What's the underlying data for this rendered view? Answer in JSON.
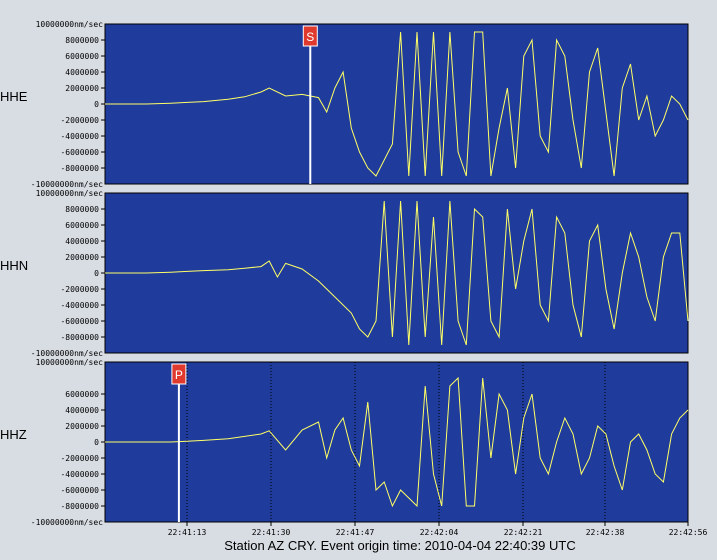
{
  "caption": "Station AZ CRY.  Event origin time: 2010-04-04 22:40:39 UTC",
  "colors": {
    "background": "#d8dde3",
    "plot_bg": "#1f3b9c",
    "trace": "#ffff66",
    "marker": "#e03a2e",
    "marker_line": "#ffffff"
  },
  "chart_data": [
    {
      "type": "line",
      "channel": "HHE",
      "ylim": [
        -10000000,
        10000000
      ],
      "y_ticks": [
        8000000,
        6000000,
        4000000,
        2000000,
        0,
        -2000000,
        -4000000,
        -6000000,
        -8000000
      ],
      "y_top_label": "10000000nm/sec",
      "y_bottom_label": "-10000000nm/sec",
      "phase_marker": {
        "label": "S",
        "x": 25
      },
      "x_ticks": [],
      "waveform": [
        [
          0,
          0
        ],
        [
          5,
          0
        ],
        [
          8,
          100000
        ],
        [
          10,
          200000
        ],
        [
          12,
          300000
        ],
        [
          15,
          600000
        ],
        [
          17,
          900000
        ],
        [
          19,
          1500000
        ],
        [
          20,
          2000000
        ],
        [
          22,
          1000000
        ],
        [
          24,
          1200000
        ],
        [
          26,
          800000
        ],
        [
          27,
          -1000000
        ],
        [
          28,
          2000000
        ],
        [
          29,
          4000000
        ],
        [
          30,
          -3000000
        ],
        [
          31,
          -6000000
        ],
        [
          32,
          -8000000
        ],
        [
          33,
          -9000000
        ],
        [
          34,
          -7000000
        ],
        [
          35,
          -5000000
        ],
        [
          36,
          9000000
        ],
        [
          37,
          -9000000
        ],
        [
          38,
          9000000
        ],
        [
          39,
          -9000000
        ],
        [
          40,
          9000000
        ],
        [
          41,
          -9000000
        ],
        [
          42,
          9000000
        ],
        [
          43,
          -6000000
        ],
        [
          44,
          -9000000
        ],
        [
          45,
          9000000
        ],
        [
          46,
          9000000
        ],
        [
          47,
          -9000000
        ],
        [
          48,
          -3000000
        ],
        [
          49,
          2000000
        ],
        [
          50,
          -8000000
        ],
        [
          51,
          6000000
        ],
        [
          52,
          8000000
        ],
        [
          53,
          -4000000
        ],
        [
          54,
          -6000000
        ],
        [
          55,
          8000000
        ],
        [
          56,
          6000000
        ],
        [
          57,
          -2000000
        ],
        [
          58,
          -8000000
        ],
        [
          59,
          4000000
        ],
        [
          60,
          7000000
        ],
        [
          61,
          -1000000
        ],
        [
          62,
          -9000000
        ],
        [
          63,
          2000000
        ],
        [
          64,
          5000000
        ],
        [
          65,
          -2000000
        ],
        [
          66,
          1000000
        ],
        [
          67,
          -4000000
        ],
        [
          68,
          -2000000
        ],
        [
          69,
          1000000
        ],
        [
          70,
          0
        ],
        [
          71,
          -2000000
        ]
      ]
    },
    {
      "type": "line",
      "channel": "HHN",
      "ylim": [
        -10000000,
        10000000
      ],
      "y_ticks": [
        8000000,
        6000000,
        4000000,
        2000000,
        0,
        -2000000,
        -4000000,
        -6000000,
        -8000000
      ],
      "y_top_label": "10000000nm/sec",
      "y_bottom_label": "-10000000nm/sec",
      "x_ticks": [],
      "waveform": [
        [
          0,
          0
        ],
        [
          5,
          0
        ],
        [
          8,
          100000
        ],
        [
          10,
          200000
        ],
        [
          12,
          300000
        ],
        [
          15,
          400000
        ],
        [
          17,
          600000
        ],
        [
          19,
          800000
        ],
        [
          20,
          1500000
        ],
        [
          21,
          -500000
        ],
        [
          22,
          1200000
        ],
        [
          24,
          500000
        ],
        [
          26,
          -1000000
        ],
        [
          27,
          -2000000
        ],
        [
          28,
          -3000000
        ],
        [
          30,
          -5000000
        ],
        [
          31,
          -7000000
        ],
        [
          32,
          -8000000
        ],
        [
          33,
          -6000000
        ],
        [
          34,
          9000000
        ],
        [
          35,
          -8000000
        ],
        [
          36,
          9000000
        ],
        [
          37,
          -9000000
        ],
        [
          38,
          9000000
        ],
        [
          39,
          -8000000
        ],
        [
          40,
          7000000
        ],
        [
          41,
          -9000000
        ],
        [
          42,
          9000000
        ],
        [
          43,
          -6000000
        ],
        [
          44,
          -9000000
        ],
        [
          45,
          8000000
        ],
        [
          46,
          7000000
        ],
        [
          47,
          -6000000
        ],
        [
          48,
          -8000000
        ],
        [
          49,
          8000000
        ],
        [
          50,
          -2000000
        ],
        [
          51,
          4000000
        ],
        [
          52,
          8000000
        ],
        [
          53,
          -4000000
        ],
        [
          54,
          -6000000
        ],
        [
          55,
          7000000
        ],
        [
          56,
          5000000
        ],
        [
          57,
          -4000000
        ],
        [
          58,
          -8000000
        ],
        [
          59,
          4000000
        ],
        [
          60,
          6000000
        ],
        [
          61,
          -2000000
        ],
        [
          62,
          -7000000
        ],
        [
          63,
          0
        ],
        [
          64,
          5000000
        ],
        [
          65,
          2000000
        ],
        [
          66,
          -3000000
        ],
        [
          67,
          -6000000
        ],
        [
          68,
          2000000
        ],
        [
          69,
          5000000
        ],
        [
          70,
          5000000
        ],
        [
          71,
          -6000000
        ]
      ]
    },
    {
      "type": "line",
      "channel": "HHZ",
      "ylim": [
        -10000000,
        10000000
      ],
      "y_ticks": [
        6000000,
        4000000,
        2000000,
        0,
        -2000000,
        -4000000,
        -6000000,
        -8000000
      ],
      "y_top_label": "10000000nm/sec",
      "y_bottom_label": "-10000000nm/sec",
      "phase_marker": {
        "label": "P",
        "x": 9
      },
      "x_ticks": [
        "22:41:13",
        "22:41:30",
        "22:41:47",
        "22:42:04",
        "22:42:21",
        "22:42:38",
        "22:42:56"
      ],
      "waveform": [
        [
          0,
          0
        ],
        [
          5,
          0
        ],
        [
          8,
          0
        ],
        [
          10,
          100000
        ],
        [
          12,
          200000
        ],
        [
          15,
          400000
        ],
        [
          17,
          700000
        ],
        [
          19,
          1000000
        ],
        [
          20,
          1400000
        ],
        [
          22,
          -1000000
        ],
        [
          24,
          1500000
        ],
        [
          26,
          2500000
        ],
        [
          27,
          -2000000
        ],
        [
          28,
          1500000
        ],
        [
          29,
          3000000
        ],
        [
          30,
          -1000000
        ],
        [
          31,
          -3000000
        ],
        [
          32,
          5000000
        ],
        [
          33,
          -6000000
        ],
        [
          34,
          -5000000
        ],
        [
          35,
          -8000000
        ],
        [
          36,
          -6000000
        ],
        [
          37,
          -7000000
        ],
        [
          38,
          -8000000
        ],
        [
          39,
          7000000
        ],
        [
          40,
          -4000000
        ],
        [
          41,
          -8000000
        ],
        [
          42,
          7000000
        ],
        [
          43,
          8000000
        ],
        [
          44,
          -8000000
        ],
        [
          45,
          -8000000
        ],
        [
          46,
          8000000
        ],
        [
          47,
          -2000000
        ],
        [
          48,
          6000000
        ],
        [
          49,
          4000000
        ],
        [
          50,
          -4000000
        ],
        [
          51,
          3000000
        ],
        [
          52,
          6000000
        ],
        [
          53,
          -2000000
        ],
        [
          54,
          -4000000
        ],
        [
          55,
          0
        ],
        [
          56,
          3000000
        ],
        [
          57,
          1000000
        ],
        [
          58,
          -4000000
        ],
        [
          59,
          -2000000
        ],
        [
          60,
          2000000
        ],
        [
          61,
          1000000
        ],
        [
          62,
          -3000000
        ],
        [
          63,
          -6000000
        ],
        [
          64,
          0
        ],
        [
          65,
          1000000
        ],
        [
          66,
          -1000000
        ],
        [
          67,
          -4000000
        ],
        [
          68,
          -5000000
        ],
        [
          69,
          1000000
        ],
        [
          70,
          3000000
        ],
        [
          71,
          4000000
        ]
      ]
    }
  ]
}
